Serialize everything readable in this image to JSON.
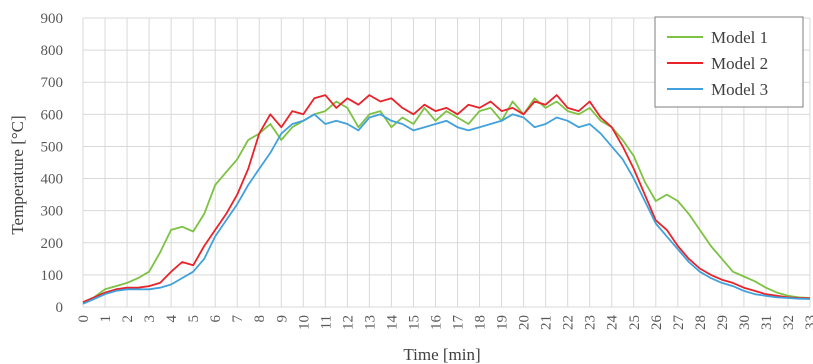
{
  "chart_data": {
    "type": "line",
    "title": "",
    "xlabel": "Time [min]",
    "ylabel": "Temperature [°C]",
    "xlim": [
      0,
      33
    ],
    "ylim": [
      0,
      900
    ],
    "x_ticks": [
      "0",
      "1",
      "2",
      "3",
      "4",
      "5",
      "6",
      "7",
      "8",
      "9",
      "10",
      "11",
      "12",
      "13",
      "14",
      "15",
      "16",
      "17",
      "18",
      "19",
      "20",
      "21",
      "22",
      "23",
      "24",
      "25",
      "26",
      "27",
      "28",
      "29",
      "30",
      "31",
      "32",
      "33"
    ],
    "y_ticks": [
      "0",
      "100",
      "200",
      "300",
      "400",
      "500",
      "600",
      "700",
      "800",
      "900"
    ],
    "grid": true,
    "legend_position": "top-right",
    "x": [
      0,
      0.5,
      1,
      1.5,
      2,
      2.5,
      3,
      3.5,
      4,
      4.5,
      5,
      5.5,
      6,
      6.5,
      7,
      7.5,
      8,
      8.5,
      9,
      9.5,
      10,
      10.5,
      11,
      11.5,
      12,
      12.5,
      13,
      13.5,
      14,
      14.5,
      15,
      15.5,
      16,
      16.5,
      17,
      17.5,
      18,
      18.5,
      19,
      19.5,
      20,
      20.5,
      21,
      21.5,
      22,
      22.5,
      23,
      23.5,
      24,
      24.5,
      25,
      25.5,
      26,
      26.5,
      27,
      27.5,
      28,
      28.5,
      29,
      29.5,
      30,
      30.5,
      31,
      31.5,
      32,
      32.5,
      33
    ],
    "series": [
      {
        "name": "Model 1",
        "color": "#7dc242",
        "values": [
          15,
          30,
          55,
          65,
          75,
          90,
          110,
          170,
          240,
          250,
          235,
          290,
          380,
          420,
          460,
          520,
          540,
          570,
          520,
          560,
          580,
          600,
          610,
          640,
          620,
          560,
          600,
          610,
          560,
          590,
          570,
          620,
          580,
          610,
          590,
          570,
          610,
          620,
          580,
          640,
          600,
          650,
          620,
          640,
          610,
          600,
          620,
          580,
          560,
          520,
          470,
          390,
          330,
          350,
          330,
          290,
          240,
          190,
          150,
          110,
          95,
          80,
          60,
          45,
          35,
          30,
          28
        ]
      },
      {
        "name": "Model 2",
        "color": "#e8232a",
        "values": [
          15,
          30,
          45,
          55,
          60,
          60,
          65,
          75,
          110,
          140,
          130,
          190,
          240,
          290,
          350,
          430,
          540,
          600,
          560,
          610,
          600,
          650,
          660,
          620,
          650,
          630,
          660,
          640,
          650,
          620,
          600,
          630,
          610,
          620,
          600,
          630,
          620,
          640,
          610,
          620,
          600,
          640,
          630,
          660,
          620,
          610,
          640,
          590,
          560,
          500,
          430,
          350,
          270,
          240,
          190,
          150,
          120,
          100,
          85,
          75,
          60,
          50,
          40,
          35,
          30,
          28,
          27
        ]
      },
      {
        "name": "Model 3",
        "color": "#41a1dc",
        "values": [
          10,
          25,
          40,
          50,
          55,
          55,
          55,
          60,
          70,
          90,
          110,
          150,
          220,
          270,
          320,
          380,
          430,
          480,
          540,
          570,
          580,
          600,
          570,
          580,
          570,
          550,
          590,
          600,
          580,
          570,
          550,
          560,
          570,
          580,
          560,
          550,
          560,
          570,
          580,
          600,
          590,
          560,
          570,
          590,
          580,
          560,
          570,
          540,
          500,
          460,
          400,
          330,
          260,
          220,
          180,
          140,
          110,
          90,
          75,
          65,
          50,
          40,
          35,
          30,
          28,
          26,
          25
        ]
      }
    ]
  }
}
